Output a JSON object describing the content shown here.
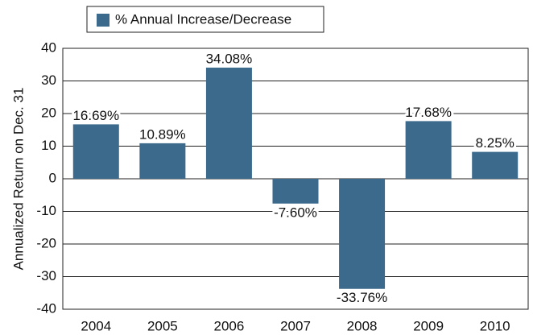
{
  "chart_data": {
    "type": "bar",
    "legend_label": "% Annual Increase/Decrease",
    "y_label": "Annualized Return on Dec. 31",
    "categories": [
      "2004",
      "2005",
      "2006",
      "2007",
      "2008",
      "2009",
      "2010"
    ],
    "values": [
      16.69,
      10.89,
      34.08,
      -7.6,
      -33.76,
      17.68,
      8.25
    ],
    "value_labels": [
      "16.69%",
      "10.89%",
      "34.08%",
      "-7.60%",
      "-33.76%",
      "17.68%",
      "8.25%"
    ],
    "color": "#3c6a8c",
    "ylim": [
      -40,
      40
    ],
    "yticks": [
      -40,
      -30,
      -20,
      -10,
      0,
      10,
      20,
      30,
      40
    ],
    "grid": true
  }
}
